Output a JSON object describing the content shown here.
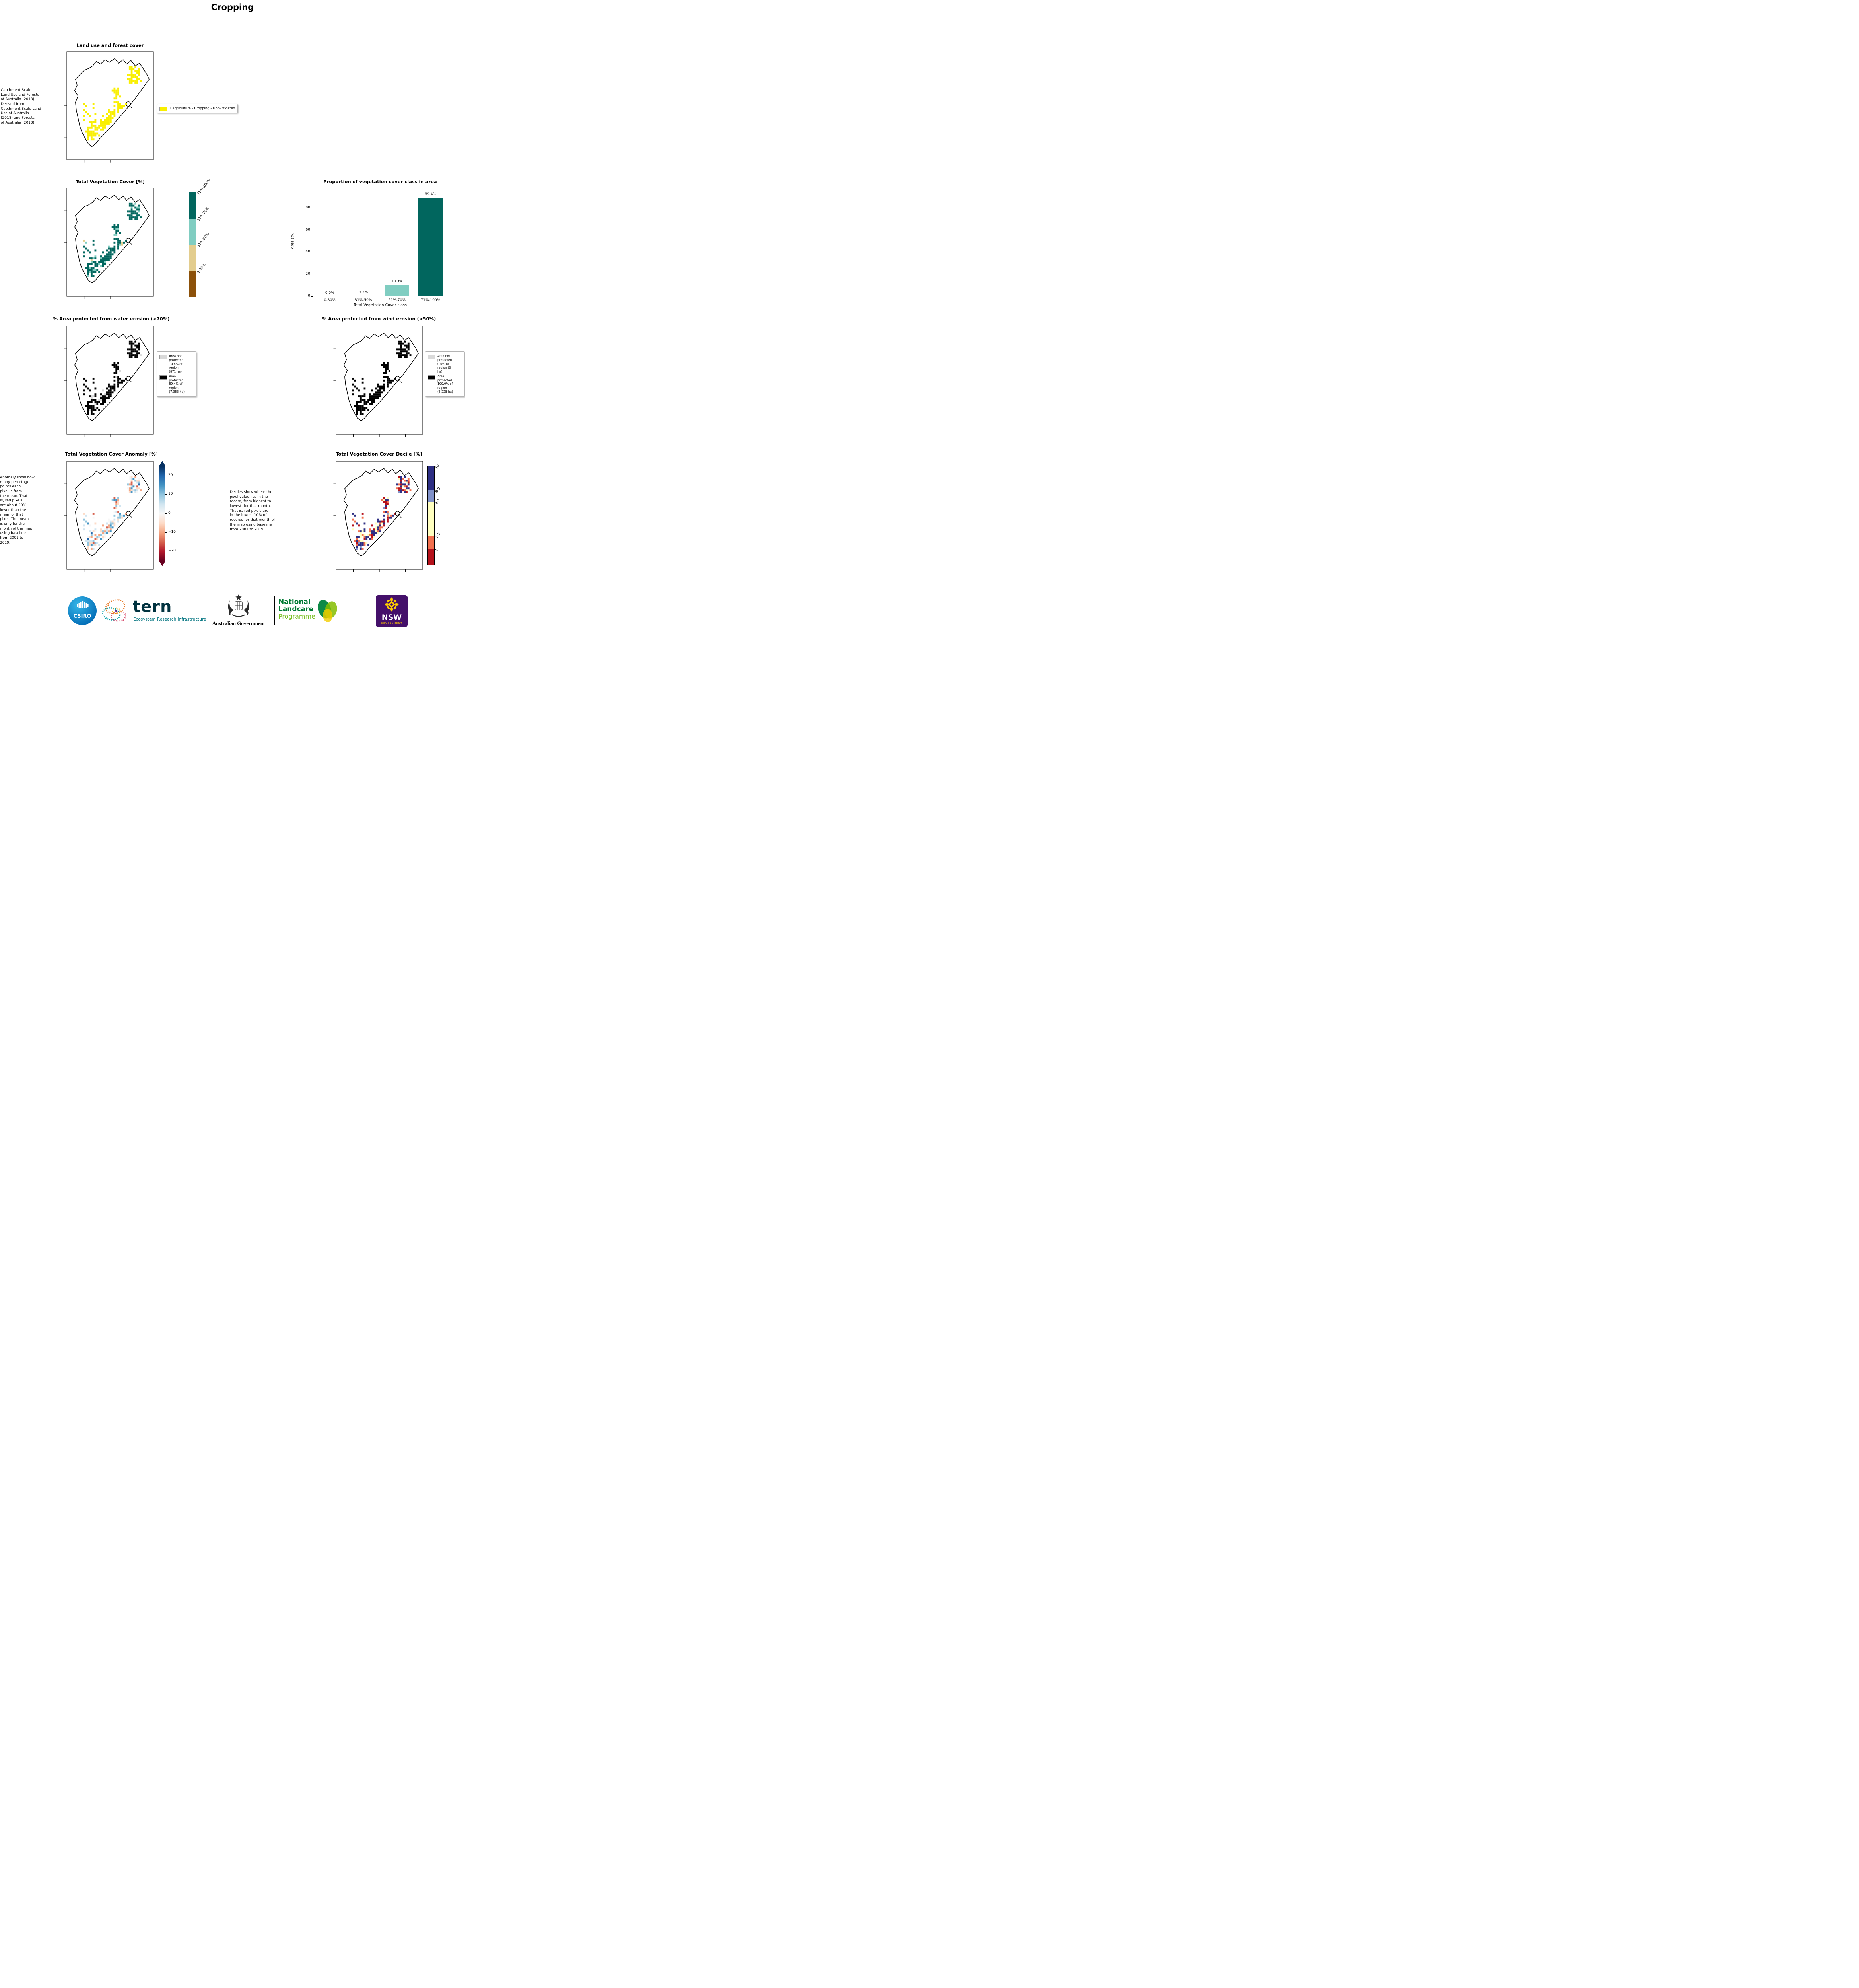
{
  "page": {
    "title": "Cropping"
  },
  "chart_data": [
    {
      "type": "bar",
      "title": "Proportion of vegetation cover class in area",
      "xlabel": "Total Vegetation Cover class",
      "ylabel": "Area (%)",
      "categories": [
        "0-30%",
        "31%-50%",
        "51%-70%",
        "71%-100%"
      ],
      "values": [
        0.0,
        0.3,
        10.3,
        89.4
      ],
      "bar_labels": [
        "0.0%",
        "0.3%",
        "10.3%",
        "89.4%"
      ],
      "yticks": [
        0,
        20,
        40,
        60,
        80
      ],
      "ylim": [
        0,
        93
      ],
      "colors": [
        "#8c510a",
        "#e3cd8e",
        "#80cdc1",
        "#01665e"
      ],
      "legend_position": "none",
      "grid": false
    },
    {
      "type": "map",
      "title": "Land use and forest cover",
      "legend": [
        "1 Agriculture - Cropping - Non-irrigated"
      ]
    },
    {
      "type": "map",
      "title": "Total Vegetation Cover [%]",
      "classes": [
        "0-30%",
        "31%-50%",
        "51%-70%",
        "71%-100%"
      ]
    },
    {
      "type": "map",
      "title": "% Area protected from water erosion (>70%)",
      "not_protected_pct": 10.6,
      "not_protected_ha": 871,
      "protected_pct": 89.4,
      "protected_ha": 7353
    },
    {
      "type": "map",
      "title": "% Area protected from wind erosion (>50%)",
      "not_protected_pct": 0.0,
      "not_protected_ha": 0,
      "protected_pct": 100.0,
      "protected_ha": 8225
    },
    {
      "type": "map",
      "title": "Total Vegetation Cover Anomaly [%]",
      "colorbar_ticks": [
        20,
        10,
        0,
        -10,
        -20
      ]
    },
    {
      "type": "map",
      "title": "Total Vegetation Cover Decile [%]",
      "classes": [
        "1",
        "2-3",
        "4-7",
        "8-9",
        "10"
      ]
    }
  ],
  "panels": {
    "land_use": {
      "title": "Land use and forest cover",
      "side_text": "Catchment Scale\nLand Use and Forests\nof Australia (2018)\nDerived from\nCatchment Scale Land\nUse of Australia\n(2018) and Forests\nof Australia (2018)",
      "legend_label": "1 Agriculture - Cropping - Non-irrigated",
      "legend_color": "#f9ef00",
      "palette": [
        {
          "color": "#f9ef00",
          "w": 1
        }
      ]
    },
    "tvc": {
      "title": "Total Vegetation Cover [%]",
      "classes": [
        {
          "label": "71%-100%",
          "color": "#01665e"
        },
        {
          "label": "51%-70%",
          "color": "#80cdc1"
        },
        {
          "label": "31%-50%",
          "color": "#e3cd8e"
        },
        {
          "label": "0-30%",
          "color": "#8c510a"
        }
      ],
      "palette": [
        {
          "color": "#01665e",
          "w": 0.78
        },
        {
          "color": "#80cdc1",
          "w": 0.2
        },
        {
          "color": "#e3cd8e",
          "w": 0.02
        }
      ]
    },
    "water": {
      "title": "% Area protected from water erosion (>70%)",
      "legend": [
        {
          "label": "Area not\nprotected\n10.6% of\nregion\n(871 ha)",
          "color": "#d9d9d9"
        },
        {
          "label": "Area\nprotected\n89.4% of\nregion\n(7,353 ha)",
          "color": "#000000"
        }
      ],
      "palette": [
        {
          "color": "#000000",
          "w": 0.88
        },
        {
          "color": "#d9d9d9",
          "w": 0.12
        }
      ]
    },
    "wind": {
      "title": "% Area protected from wind erosion (>50%)",
      "legend": [
        {
          "label": "Area not\nprotected\n0.0% of\nregion (0\nha)",
          "color": "#d9d9d9"
        },
        {
          "label": "Area\nprotected\n100.0% of\nregion\n(8,225 ha)",
          "color": "#000000"
        }
      ],
      "palette": [
        {
          "color": "#000000",
          "w": 1
        }
      ]
    },
    "anomaly": {
      "title": "Total Vegetation Cover Anomaly [%]",
      "side_text": "Anomaly show how\nmany percetage\npoints each\npixel is from\nthe mean. That\nis, red pixels\nare about 20%\nlower than the\nmean of that\npixel. The mean\nis only for the\nmonth of the map\nusing baseline\nfrom 2001 to\n2019.",
      "ticks": [
        "20",
        "10",
        "0",
        "−10",
        "−20"
      ],
      "gradient_colors": [
        "#053061",
        "#2166ac",
        "#4393c3",
        "#92c5de",
        "#d1e5f0",
        "#f7f7f7",
        "#fddbc7",
        "#f4a582",
        "#d6604d",
        "#b2182b",
        "#67001f"
      ],
      "palette": [
        {
          "color": "#f7f7f7",
          "w": 0.16
        },
        {
          "color": "#fddbc7",
          "w": 0.2
        },
        {
          "color": "#f4a582",
          "w": 0.13
        },
        {
          "color": "#d6604d",
          "w": 0.05
        },
        {
          "color": "#d1e5f0",
          "w": 0.22
        },
        {
          "color": "#92c5de",
          "w": 0.14
        },
        {
          "color": "#4393c3",
          "w": 0.07
        },
        {
          "color": "#2166ac",
          "w": 0.03
        }
      ]
    },
    "decile": {
      "title": "Total Vegetation Cover Decile [%]",
      "side_text": "Deciles show where the\npixel value lies in the\nrecord, from highest to\nlowest, for that month.\nThat is, red pixels are\nin the lowest 10% of\nrecords for that month of\nthe map using baseline\nfrom 2001 to 2019.",
      "classes": [
        {
          "label": "10",
          "color": "#2d2e83"
        },
        {
          "label": "8-9",
          "color": "#8091c9"
        },
        {
          "label": "4-7",
          "color": "#ffffbf"
        },
        {
          "label": "2-3",
          "color": "#f2704e"
        },
        {
          "label": "1",
          "color": "#b5121b"
        }
      ],
      "palette": [
        {
          "color": "#2d2e83",
          "w": 0.34
        },
        {
          "color": "#8091c9",
          "w": 0.1
        },
        {
          "color": "#ffffbf",
          "w": 0.16
        },
        {
          "color": "#f2704e",
          "w": 0.2
        },
        {
          "color": "#b5121b",
          "w": 0.2
        }
      ]
    }
  },
  "footer": {
    "csiro_label": "CSIRO",
    "tern_label": "tern",
    "tern_sub": "Ecosystem Research Infrastructure",
    "aus_gov": "Australian Government",
    "landcare_line1": "National",
    "landcare_line2": "Landcare",
    "landcare_line3": "Programme",
    "nsw_label": "NSW",
    "nsw_sub": "GOVERNMENT"
  }
}
